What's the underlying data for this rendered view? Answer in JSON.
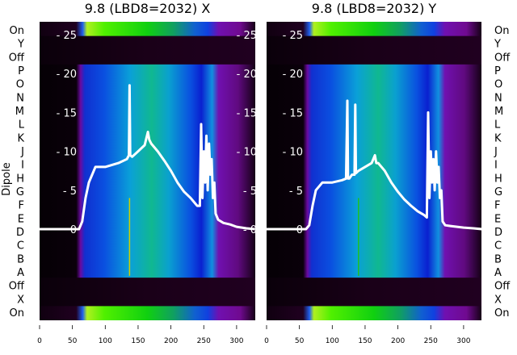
{
  "chart_data": {
    "type": "heatmap",
    "ylabel": "Dipole",
    "row_labels_left": [
      "On",
      "Y",
      "Off",
      "P",
      "O",
      "N",
      "M",
      "L",
      "K",
      "J",
      "I",
      "H",
      "G",
      "F",
      "E",
      "D",
      "C",
      "B",
      "A",
      "Off",
      "X",
      "On"
    ],
    "row_labels_right": [
      "On",
      "Y",
      "Off",
      "P",
      "O",
      "N",
      "M",
      "L",
      "K",
      "J",
      "I",
      "H",
      "G",
      "F",
      "E",
      "D",
      "C",
      "B",
      "A",
      "Off",
      "X",
      "On"
    ],
    "xlim": [
      0,
      330
    ],
    "xticks": [
      0,
      50,
      100,
      150,
      200,
      250,
      300
    ],
    "overlay_ylim": [
      0,
      25
    ],
    "overlay_yticks": [
      0,
      5,
      10,
      15,
      20,
      25
    ],
    "panels": [
      {
        "title": "9.8 (LBD8=2032) X",
        "bright_row": "bottom",
        "line": {
          "x": [
            0,
            60,
            65,
            70,
            75,
            85,
            100,
            120,
            133,
            136,
            137,
            138,
            141,
            150,
            160,
            165,
            167,
            170,
            180,
            190,
            200,
            210,
            220,
            230,
            240,
            244,
            246,
            248,
            250,
            252,
            254,
            256,
            258,
            260,
            262,
            264,
            266,
            268,
            272,
            280,
            290,
            300,
            315,
            328
          ],
          "y": [
            0,
            0,
            1,
            4,
            6,
            8,
            8,
            8.5,
            9,
            9.5,
            18.5,
            9.5,
            9.3,
            10,
            10.8,
            12.5,
            11.5,
            11,
            10,
            8.8,
            7.5,
            6,
            4.8,
            4,
            3,
            3,
            13.5,
            4,
            10,
            6,
            12,
            5,
            11,
            7,
            9,
            4,
            6,
            2,
            1.2,
            0.8,
            0.6,
            0.3,
            0.1,
            0
          ]
        }
      },
      {
        "title": "9.8 (LBD8=2032) Y",
        "bright_row": "both",
        "line": {
          "x": [
            0,
            60,
            65,
            70,
            75,
            85,
            100,
            115,
            121,
            123,
            124,
            126,
            130,
            134,
            135,
            136,
            140,
            150,
            160,
            165,
            167,
            170,
            180,
            190,
            200,
            210,
            220,
            230,
            240,
            244,
            246,
            248,
            250,
            252,
            254,
            256,
            258,
            260,
            262,
            264,
            266,
            268,
            272,
            280,
            290,
            300,
            315,
            328
          ],
          "y": [
            0,
            0,
            0.5,
            3,
            5,
            6,
            6,
            6.3,
            6.5,
            16.5,
            6.5,
            6.5,
            7,
            7,
            16,
            7.2,
            7.5,
            8,
            8.5,
            9.5,
            8.5,
            8.5,
            7.5,
            6,
            4.8,
            3.8,
            3,
            2.3,
            1.8,
            1.5,
            15,
            4,
            10,
            6,
            9,
            5,
            10,
            6,
            8,
            4,
            5,
            1,
            0.5,
            0.4,
            0.3,
            0.2,
            0.1,
            0
          ]
        }
      }
    ]
  }
}
